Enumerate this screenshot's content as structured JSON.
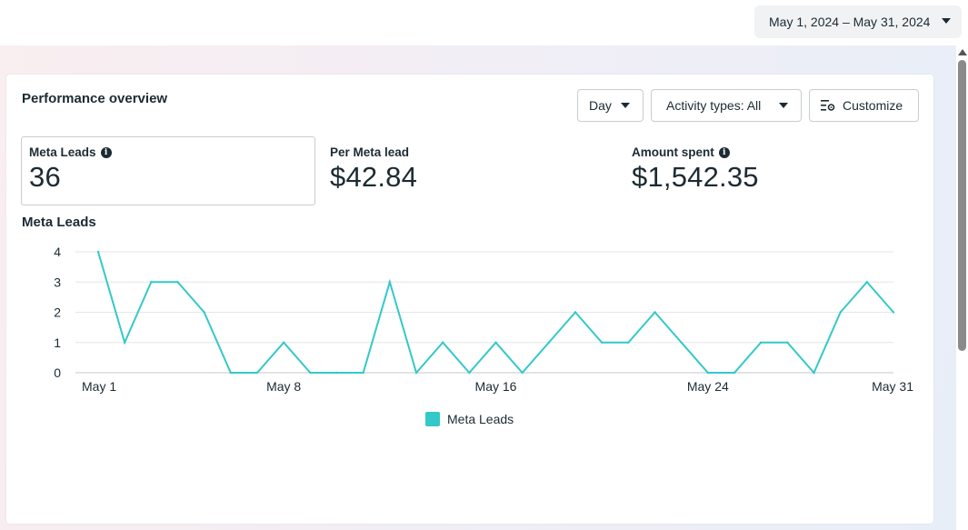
{
  "date_range": {
    "label": "May 1, 2024 – May 31, 2024"
  },
  "card": {
    "title": "Performance overview",
    "day_button": "Day",
    "activity_button": "Activity types: All",
    "customize_button": "Customize"
  },
  "metrics": {
    "meta_leads": {
      "label": "Meta Leads",
      "value": "36"
    },
    "per_meta_lead": {
      "label": "Per Meta lead",
      "value": "$42.84"
    },
    "amount_spent": {
      "label": "Amount spent",
      "value": "$1,542.35"
    }
  },
  "info_glyph": "i",
  "chart_data": {
    "type": "line",
    "title": "Meta Leads",
    "xlabel": "",
    "ylabel": "",
    "ylim": [
      0,
      4
    ],
    "yticks": [
      "0",
      "1",
      "2",
      "3",
      "4"
    ],
    "x_tick_labels": [
      {
        "day": 1,
        "label": "May 1"
      },
      {
        "day": 8,
        "label": "May 8"
      },
      {
        "day": 16,
        "label": "May 16"
      },
      {
        "day": 24,
        "label": "May 24"
      },
      {
        "day": 31,
        "label": "May 31"
      }
    ],
    "grid": true,
    "color": "#34c8c8",
    "series": [
      {
        "name": "Meta Leads",
        "x": [
          1,
          2,
          3,
          4,
          5,
          6,
          7,
          8,
          9,
          10,
          11,
          12,
          13,
          14,
          15,
          16,
          17,
          18,
          19,
          20,
          21,
          22,
          23,
          24,
          25,
          26,
          27,
          28,
          29,
          30,
          31
        ],
        "values": [
          4,
          1,
          3,
          3,
          2,
          0,
          0,
          1,
          0,
          0,
          0,
          3,
          0,
          1,
          0,
          1,
          0,
          1,
          2,
          1,
          1,
          2,
          1,
          0,
          0,
          1,
          1,
          0,
          2,
          3,
          2
        ]
      }
    ],
    "legend": [
      "Meta Leads"
    ]
  }
}
